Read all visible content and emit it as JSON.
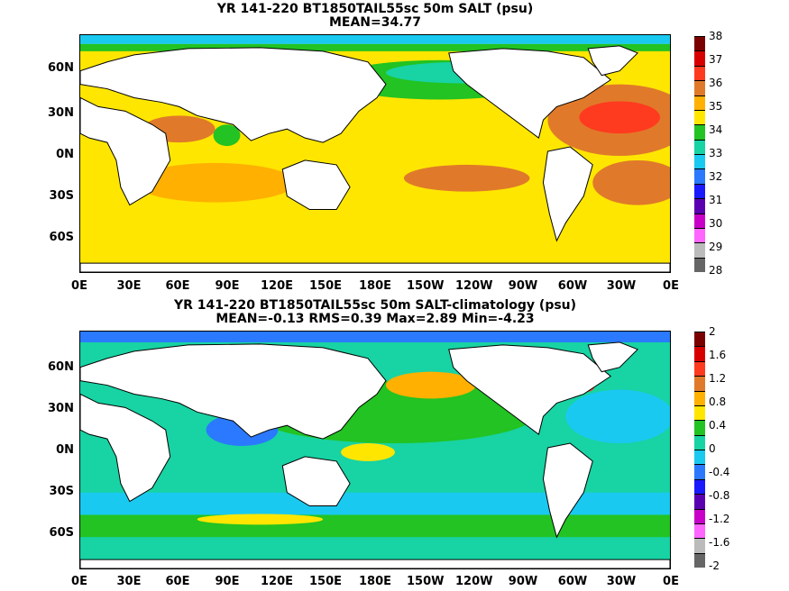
{
  "panels": [
    {
      "title_line1": "YR 141-220 BT1850TAIL55sc 50m SALT (psu)",
      "title_line2": "MEAN=34.77",
      "lat_labels": [
        "60N",
        "30N",
        "0N",
        "30S",
        "60S"
      ],
      "lon_labels": [
        "0E",
        "30E",
        "60E",
        "90E",
        "120E",
        "150E",
        "180E",
        "150W",
        "120W",
        "90W",
        "60W",
        "30W",
        "0E"
      ],
      "colorbar_labels": [
        "38",
        "37",
        "36",
        "35",
        "34",
        "33",
        "32",
        "31",
        "30",
        "29",
        "28"
      ],
      "colorbar_colors": [
        "#7a0000",
        "#d70000",
        "#ff3b1f",
        "#e07a2a",
        "#ffb000",
        "#ffe600",
        "#22c322",
        "#18d3a3",
        "#1ac9f0",
        "#2a79ff",
        "#1a1aff",
        "#5a00b0",
        "#c800c8",
        "#ff66ff",
        "#bbbbbb",
        "#666666"
      ]
    },
    {
      "title_line1": "YR 141-220 BT1850TAIL55sc 50m SALT-climatology (psu)",
      "title_line2": "MEAN=-0.13   RMS=0.39   Max=2.89   Min=-4.23",
      "lat_labels": [
        "60N",
        "30N",
        "0N",
        "30S",
        "60S"
      ],
      "lon_labels": [
        "0E",
        "30E",
        "60E",
        "90E",
        "120E",
        "150E",
        "180E",
        "150W",
        "120W",
        "90W",
        "60W",
        "30W",
        "0E"
      ],
      "colorbar_labels": [
        "2",
        "1.6",
        "1.2",
        "0.8",
        "0.4",
        "0",
        "-0.4",
        "-0.8",
        "-1.2",
        "-1.6",
        "-2"
      ],
      "colorbar_colors": [
        "#7a0000",
        "#d70000",
        "#ff3b1f",
        "#e07a2a",
        "#ffb000",
        "#ffe600",
        "#22c322",
        "#18d3a3",
        "#1ac9f0",
        "#2a79ff",
        "#1a1aff",
        "#5a00b0",
        "#c800c8",
        "#ff66ff",
        "#bbbbbb",
        "#666666"
      ]
    }
  ],
  "colors": {
    "land": "#ffffff",
    "coast": "#000000"
  }
}
